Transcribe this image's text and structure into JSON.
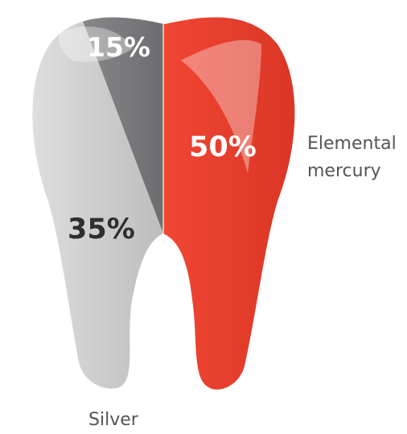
{
  "chart_data": {
    "type": "pie",
    "title": "",
    "slices": [
      {
        "label": "Elemental mercury",
        "value": 50,
        "display": "50%",
        "color": "#e8321f"
      },
      {
        "label": "Silver",
        "value": 35,
        "display": "35%",
        "color": "#dcdcdc"
      },
      {
        "label": "",
        "value": 15,
        "display": "15%",
        "color": "#808083"
      }
    ],
    "legend": {
      "mercury_line1": "Elemental",
      "mercury_line2": "mercury",
      "silver": "Silver"
    }
  },
  "colors": {
    "mercury_light": "#f04733",
    "mercury_dark": "#c9261a",
    "silver_light": "#e6e6e6",
    "silver_dark": "#bdbdbd",
    "other_light": "#8a8a8d",
    "other_dark": "#6d6d70",
    "label_dark": "#2e2e2e",
    "legend_text": "#555555"
  }
}
